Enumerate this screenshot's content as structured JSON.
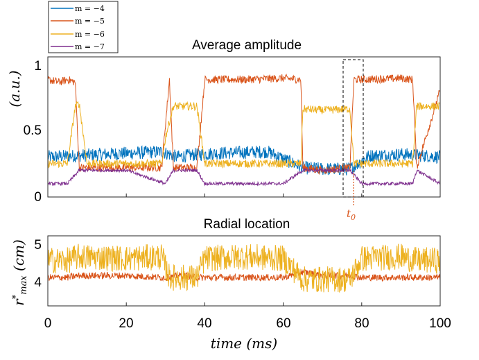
{
  "chart_data": [
    {
      "type": "line",
      "title": "Average amplitude",
      "xlabel": "",
      "ylabel": "(a.u.)",
      "xlim": [
        0,
        100
      ],
      "ylim": [
        0,
        1.05
      ],
      "yticks": [
        "0",
        "0.5",
        "1"
      ],
      "grid": false,
      "legend": {
        "placement": "top-left, outside",
        "entries": [
          "m = −4",
          "m = −5",
          "m = −6",
          "m = −7"
        ]
      },
      "series": [
        {
          "name": "m = −4",
          "color": "#0072BD",
          "x": [
            0,
            8,
            14,
            22,
            29,
            33,
            38,
            45,
            56,
            65,
            70,
            77,
            82,
            90,
            96,
            100
          ],
          "y": [
            0.3,
            0.31,
            0.32,
            0.33,
            0.34,
            0.3,
            0.32,
            0.33,
            0.34,
            0.22,
            0.21,
            0.21,
            0.31,
            0.32,
            0.31,
            0.3
          ]
        },
        {
          "name": "m = −5",
          "color": "#D95319",
          "x": [
            0,
            3,
            5,
            7,
            8,
            10,
            20,
            29,
            30,
            31,
            32,
            35,
            38,
            40,
            50,
            60,
            64.5,
            65,
            70,
            77,
            78,
            80,
            90,
            93,
            94,
            100
          ],
          "y": [
            0.88,
            0.86,
            0.88,
            0.86,
            0.22,
            0.22,
            0.22,
            0.22,
            0.55,
            0.88,
            0.22,
            0.22,
            0.22,
            0.88,
            0.88,
            0.89,
            0.88,
            0.22,
            0.2,
            0.22,
            0.88,
            0.88,
            0.89,
            0.88,
            0.22,
            0.8
          ]
        },
        {
          "name": "m = −6",
          "color": "#EDB120",
          "x": [
            0,
            5,
            7,
            8,
            10,
            20,
            29,
            30,
            32,
            35,
            38,
            40,
            50,
            60,
            64.5,
            65,
            70,
            77,
            78,
            80,
            90,
            93,
            94,
            100
          ],
          "y": [
            0.25,
            0.25,
            0.68,
            0.7,
            0.25,
            0.25,
            0.25,
            0.45,
            0.68,
            0.68,
            0.68,
            0.25,
            0.25,
            0.25,
            0.25,
            0.66,
            0.65,
            0.66,
            0.25,
            0.25,
            0.25,
            0.25,
            0.68,
            0.68
          ]
        },
        {
          "name": "m = −7",
          "color": "#7E2F8E",
          "x": [
            0,
            5,
            8,
            20,
            30,
            32,
            38,
            40,
            50,
            60,
            65,
            70,
            77,
            80,
            90,
            93,
            94,
            100
          ],
          "y": [
            0.1,
            0.1,
            0.2,
            0.2,
            0.1,
            0.2,
            0.2,
            0.1,
            0.1,
            0.1,
            0.2,
            0.2,
            0.2,
            0.1,
            0.1,
            0.1,
            0.2,
            0.1
          ]
        }
      ],
      "annotations": [
        {
          "text": "t0",
          "x": 78,
          "kind": "vertical-dotted-line",
          "color": "#D95319"
        },
        {
          "kind": "dashed-box",
          "x": [
            75.5,
            81
          ]
        }
      ]
    },
    {
      "type": "line",
      "title": "Radial location",
      "xlabel": "time (ms)",
      "ylabel": "r*max (cm)",
      "xlim": [
        0,
        100
      ],
      "ylim": [
        3.3,
        5.15
      ],
      "xticks": [
        "0",
        "20",
        "40",
        "60",
        "80",
        "100"
      ],
      "yticks": [
        "4",
        "5"
      ],
      "grid": false,
      "series": [
        {
          "name": "m = −5",
          "color": "#D95319",
          "x": [
            0,
            3,
            5,
            8,
            20,
            29,
            31,
            33,
            35,
            38,
            40,
            50,
            60,
            65,
            70,
            77,
            80,
            90,
            94,
            100
          ],
          "y": [
            4.05,
            4.05,
            4.05,
            4.1,
            4.1,
            4.05,
            4.05,
            4.1,
            4.1,
            4.05,
            4.05,
            4.05,
            4.05,
            4.2,
            4.1,
            4.1,
            4.05,
            4.05,
            4.05,
            4.05
          ]
        },
        {
          "name": "m = −6",
          "color": "#EDB120",
          "x": [
            0,
            5,
            8,
            20,
            29,
            31,
            33,
            38,
            40,
            50,
            60,
            65,
            70,
            77,
            80,
            90,
            94,
            100
          ],
          "y": [
            4.5,
            4.5,
            4.6,
            4.55,
            4.6,
            4.05,
            4.05,
            4.05,
            4.55,
            4.6,
            4.55,
            4.0,
            4.0,
            4.0,
            4.55,
            4.6,
            4.5,
            4.5
          ]
        }
      ]
    }
  ],
  "text": {
    "top_title": "Average amplitude",
    "bottom_title": "Radial location",
    "top_ylabel": "(a.u.)",
    "bottom_ylabel": "r*max (cm)",
    "xlabel": "time (ms)",
    "t0_label": "t0",
    "legend": [
      "m = −4",
      "m = −5",
      "m = −6",
      "m = −7"
    ],
    "top_yticks": [
      "0",
      "0.5",
      "1"
    ],
    "bottom_yticks": [
      "4",
      "5"
    ],
    "xticks": [
      "0",
      "20",
      "40",
      "60",
      "80",
      "100"
    ]
  }
}
